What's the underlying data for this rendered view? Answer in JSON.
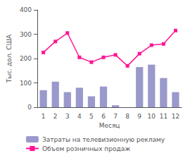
{
  "chart_data": {
    "type": "bar",
    "xlabel": "Месяц",
    "ylabel": "Тыс. дол. США",
    "categories": [
      "1",
      "2",
      "3",
      "4",
      "5",
      "6",
      "7",
      "8",
      "9",
      "10",
      "11",
      "12"
    ],
    "series": [
      {
        "name": "Затраты на телевизионную рекламу",
        "type": "bar",
        "color": "#9999cc",
        "values": [
          70,
          105,
          62,
          80,
          45,
          85,
          8,
          0,
          165,
          175,
          120,
          62
        ]
      },
      {
        "name": "Объем розничных продаж",
        "type": "line",
        "color": "#ff1493",
        "marker": "square",
        "values": [
          225,
          270,
          305,
          205,
          185,
          205,
          215,
          170,
          220,
          255,
          260,
          315
        ]
      }
    ],
    "ylim": [
      0,
      400
    ],
    "yticks": [
      0,
      100,
      200,
      300,
      400
    ],
    "grid": false,
    "legend": "bottom"
  }
}
